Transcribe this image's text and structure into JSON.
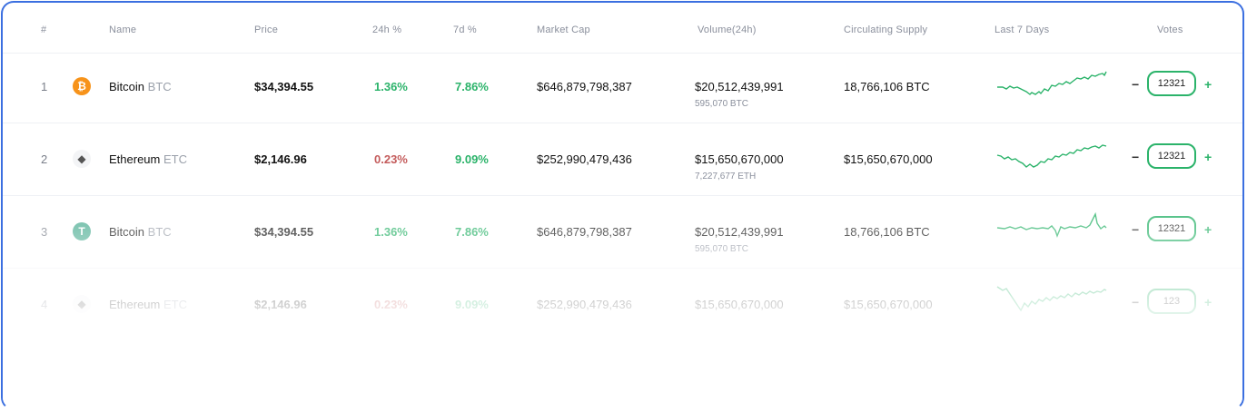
{
  "header": {
    "rank": "#",
    "name": "Name",
    "price": "Price",
    "change24h": "24h %",
    "change7d": "7d %",
    "market_cap": "Market Cap",
    "volume": "Volume(24h)",
    "supply": "Circulating Supply",
    "last7": "Last 7 Days",
    "votes": "Votes"
  },
  "rows": [
    {
      "rank": "1",
      "name": "Bitcoin",
      "ticker": "BTC",
      "icon": "bitcoin-icon",
      "price": "$34,394.55",
      "change24h": "1.36%",
      "change7d": "7.86%",
      "market_cap": "$646,879,798,387",
      "volume": "$20,512,439,991",
      "volume_sub": "595,070 BTC",
      "supply": "18,766,106 BTC",
      "votes": "12321",
      "change24h_color": "#2bb36a",
      "change7d_color": "#2bb36a"
    },
    {
      "rank": "2",
      "name": "Ethereum",
      "ticker": "ETC",
      "icon": "ethereum-icon",
      "price": "$2,146.96",
      "change24h": "0.23%",
      "change7d": "9.09%",
      "market_cap": "$252,990,479,436",
      "volume": "$15,650,670,000",
      "volume_sub": "7,227,677 ETH",
      "supply": "$15,650,670,000",
      "votes": "12321",
      "change24h_color": "#c45c5c",
      "change7d_color": "#2bb36a"
    },
    {
      "rank": "3",
      "name": "Bitcoin",
      "ticker": "BTC",
      "icon": "tether-icon",
      "price": "$34,394.55",
      "change24h": "1.36%",
      "change7d": "7.86%",
      "market_cap": "$646,879,798,387",
      "volume": "$20,512,439,991",
      "volume_sub": "595,070 BTC",
      "supply": "18,766,106 BTC",
      "votes": "12321",
      "change24h_color": "#2bb36a",
      "change7d_color": "#2bb36a"
    },
    {
      "rank": "4",
      "name": "Ethereum",
      "ticker": "ETC",
      "icon": "ethereum-icon",
      "price": "$2,146.96",
      "change24h": "0.23%",
      "change7d": "9.09%",
      "market_cap": "$252,990,479,436",
      "volume": "$15,650,670,000",
      "volume_sub": "",
      "supply": "$15,650,670,000",
      "votes": "123",
      "change24h_color": "#c45c5c",
      "change7d_color": "#2bb36a"
    }
  ],
  "vote_controls": {
    "minus": "−",
    "plus": "+"
  },
  "colors": {
    "accent": "#2bb36a",
    "negative": "#c45c5c",
    "border": "#3b6fe0"
  }
}
